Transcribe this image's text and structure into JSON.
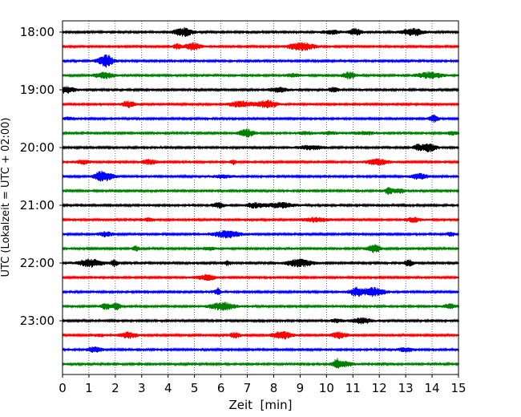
{
  "chart_data": {
    "type": "line",
    "title": "",
    "xlabel": "Zeit  [min]",
    "ylabel": "UTC (Lokalzeit = UTC + 02:00)",
    "xlim": [
      0,
      15
    ],
    "x_ticks": [
      "0",
      "1",
      "2",
      "3",
      "4",
      "5",
      "6",
      "7",
      "8",
      "9",
      "10",
      "11",
      "12",
      "13",
      "14",
      "15"
    ],
    "y_ticks": [
      "18:00",
      "19:00",
      "20:00",
      "21:00",
      "22:00",
      "23:00"
    ],
    "grid": "vertical dotted",
    "trace_interval_minutes": 15,
    "trace_colors": [
      "#000000",
      "#ff0000",
      "#0000ff",
      "#008000"
    ],
    "traces_start": "18:00",
    "traces_end": "23:45",
    "trace_count": 24
  }
}
